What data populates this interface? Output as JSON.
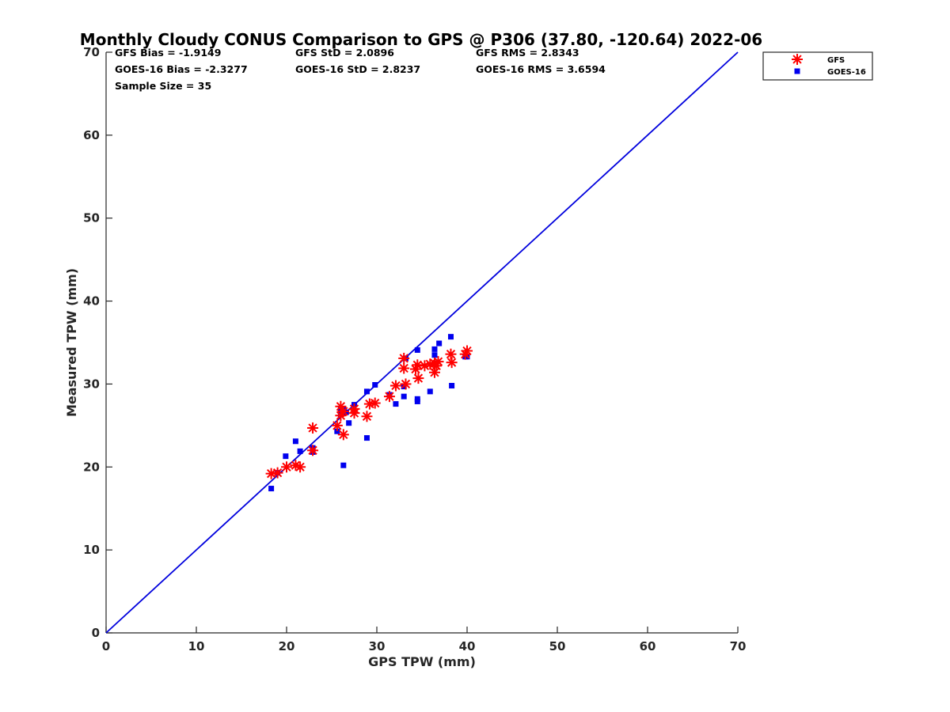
{
  "chart_data": {
    "type": "scatter",
    "title": "Monthly Cloudy CONUS Comparison to GPS @ P306 (37.80, -120.64) 2022-06",
    "xlabel": "GPS TPW (mm)",
    "ylabel": "Measured TPW (mm)",
    "xlim": [
      0,
      70
    ],
    "ylim": [
      0,
      70
    ],
    "xticks": [
      "0",
      "10",
      "20",
      "30",
      "40",
      "50",
      "60",
      "70"
    ],
    "yticks": [
      "0",
      "10",
      "20",
      "30",
      "40",
      "50",
      "60",
      "70"
    ],
    "grid": false,
    "legend_position": "top-right, outside plot",
    "stats": {
      "gfs_bias": "GFS Bias = -1.9149",
      "gfs_std": "GFS StD = 2.0896",
      "gfs_rms": "GFS RMS = 2.8343",
      "goes_bias": "GOES-16 Bias = -2.3277",
      "goes_std": "GOES-16 StD = 2.8237",
      "goes_rms": "GOES-16 RMS = 3.6594",
      "sample_size": "Sample Size = 35"
    },
    "reference_line": {
      "from": [
        0,
        0
      ],
      "to": [
        70,
        70
      ],
      "color": "#0000dd"
    },
    "series": [
      {
        "name": "GFS",
        "marker": "asterisk",
        "color": "#ff0000",
        "points": [
          [
            18.3,
            19.2
          ],
          [
            19.0,
            19.3
          ],
          [
            20.0,
            20.0
          ],
          [
            21.0,
            20.2
          ],
          [
            21.5,
            20.0
          ],
          [
            22.9,
            24.7
          ],
          [
            22.9,
            22.0
          ],
          [
            25.6,
            25.0
          ],
          [
            26.0,
            27.3
          ],
          [
            26.3,
            26.7
          ],
          [
            26.3,
            23.9
          ],
          [
            27.5,
            26.5
          ],
          [
            27.5,
            27.0
          ],
          [
            28.9,
            26.1
          ],
          [
            29.2,
            27.6
          ],
          [
            29.8,
            27.7
          ],
          [
            31.4,
            28.5
          ],
          [
            32.1,
            29.8
          ],
          [
            33.0,
            33.1
          ],
          [
            33.0,
            31.9
          ],
          [
            33.2,
            30.0
          ],
          [
            34.3,
            31.8
          ],
          [
            34.5,
            32.3
          ],
          [
            34.6,
            30.7
          ],
          [
            35.9,
            32.4
          ],
          [
            36.4,
            32.5
          ],
          [
            36.4,
            31.4
          ],
          [
            36.6,
            32.2
          ],
          [
            36.8,
            32.7
          ],
          [
            38.2,
            33.6
          ],
          [
            38.3,
            32.6
          ],
          [
            39.8,
            33.6
          ],
          [
            40.0,
            34.0
          ],
          [
            26.0,
            26.2
          ],
          [
            35.3,
            32.2
          ]
        ]
      },
      {
        "name": "GOES-16",
        "marker": "square",
        "color": "#0000ee",
        "points": [
          [
            18.3,
            17.4
          ],
          [
            19.0,
            19.3
          ],
          [
            19.9,
            21.3
          ],
          [
            21.0,
            23.1
          ],
          [
            21.5,
            21.9
          ],
          [
            22.9,
            22.3
          ],
          [
            22.9,
            21.8
          ],
          [
            25.6,
            24.3
          ],
          [
            26.0,
            26.3
          ],
          [
            26.0,
            27.0
          ],
          [
            26.3,
            20.2
          ],
          [
            26.6,
            26.6
          ],
          [
            26.9,
            25.3
          ],
          [
            27.5,
            27.5
          ],
          [
            28.9,
            23.5
          ],
          [
            28.9,
            29.1
          ],
          [
            29.8,
            29.9
          ],
          [
            31.4,
            28.7
          ],
          [
            32.1,
            27.6
          ],
          [
            33.0,
            29.7
          ],
          [
            33.0,
            28.5
          ],
          [
            33.2,
            33.1
          ],
          [
            34.5,
            34.1
          ],
          [
            34.5,
            28.2
          ],
          [
            34.5,
            27.9
          ],
          [
            35.9,
            29.1
          ],
          [
            36.4,
            33.5
          ],
          [
            36.4,
            34.2
          ],
          [
            36.9,
            34.9
          ],
          [
            38.2,
            35.7
          ],
          [
            38.3,
            29.8
          ],
          [
            39.8,
            33.3
          ],
          [
            40.0,
            33.3
          ],
          [
            36.4,
            32.5
          ],
          [
            26.3,
            26.9
          ]
        ]
      }
    ]
  }
}
